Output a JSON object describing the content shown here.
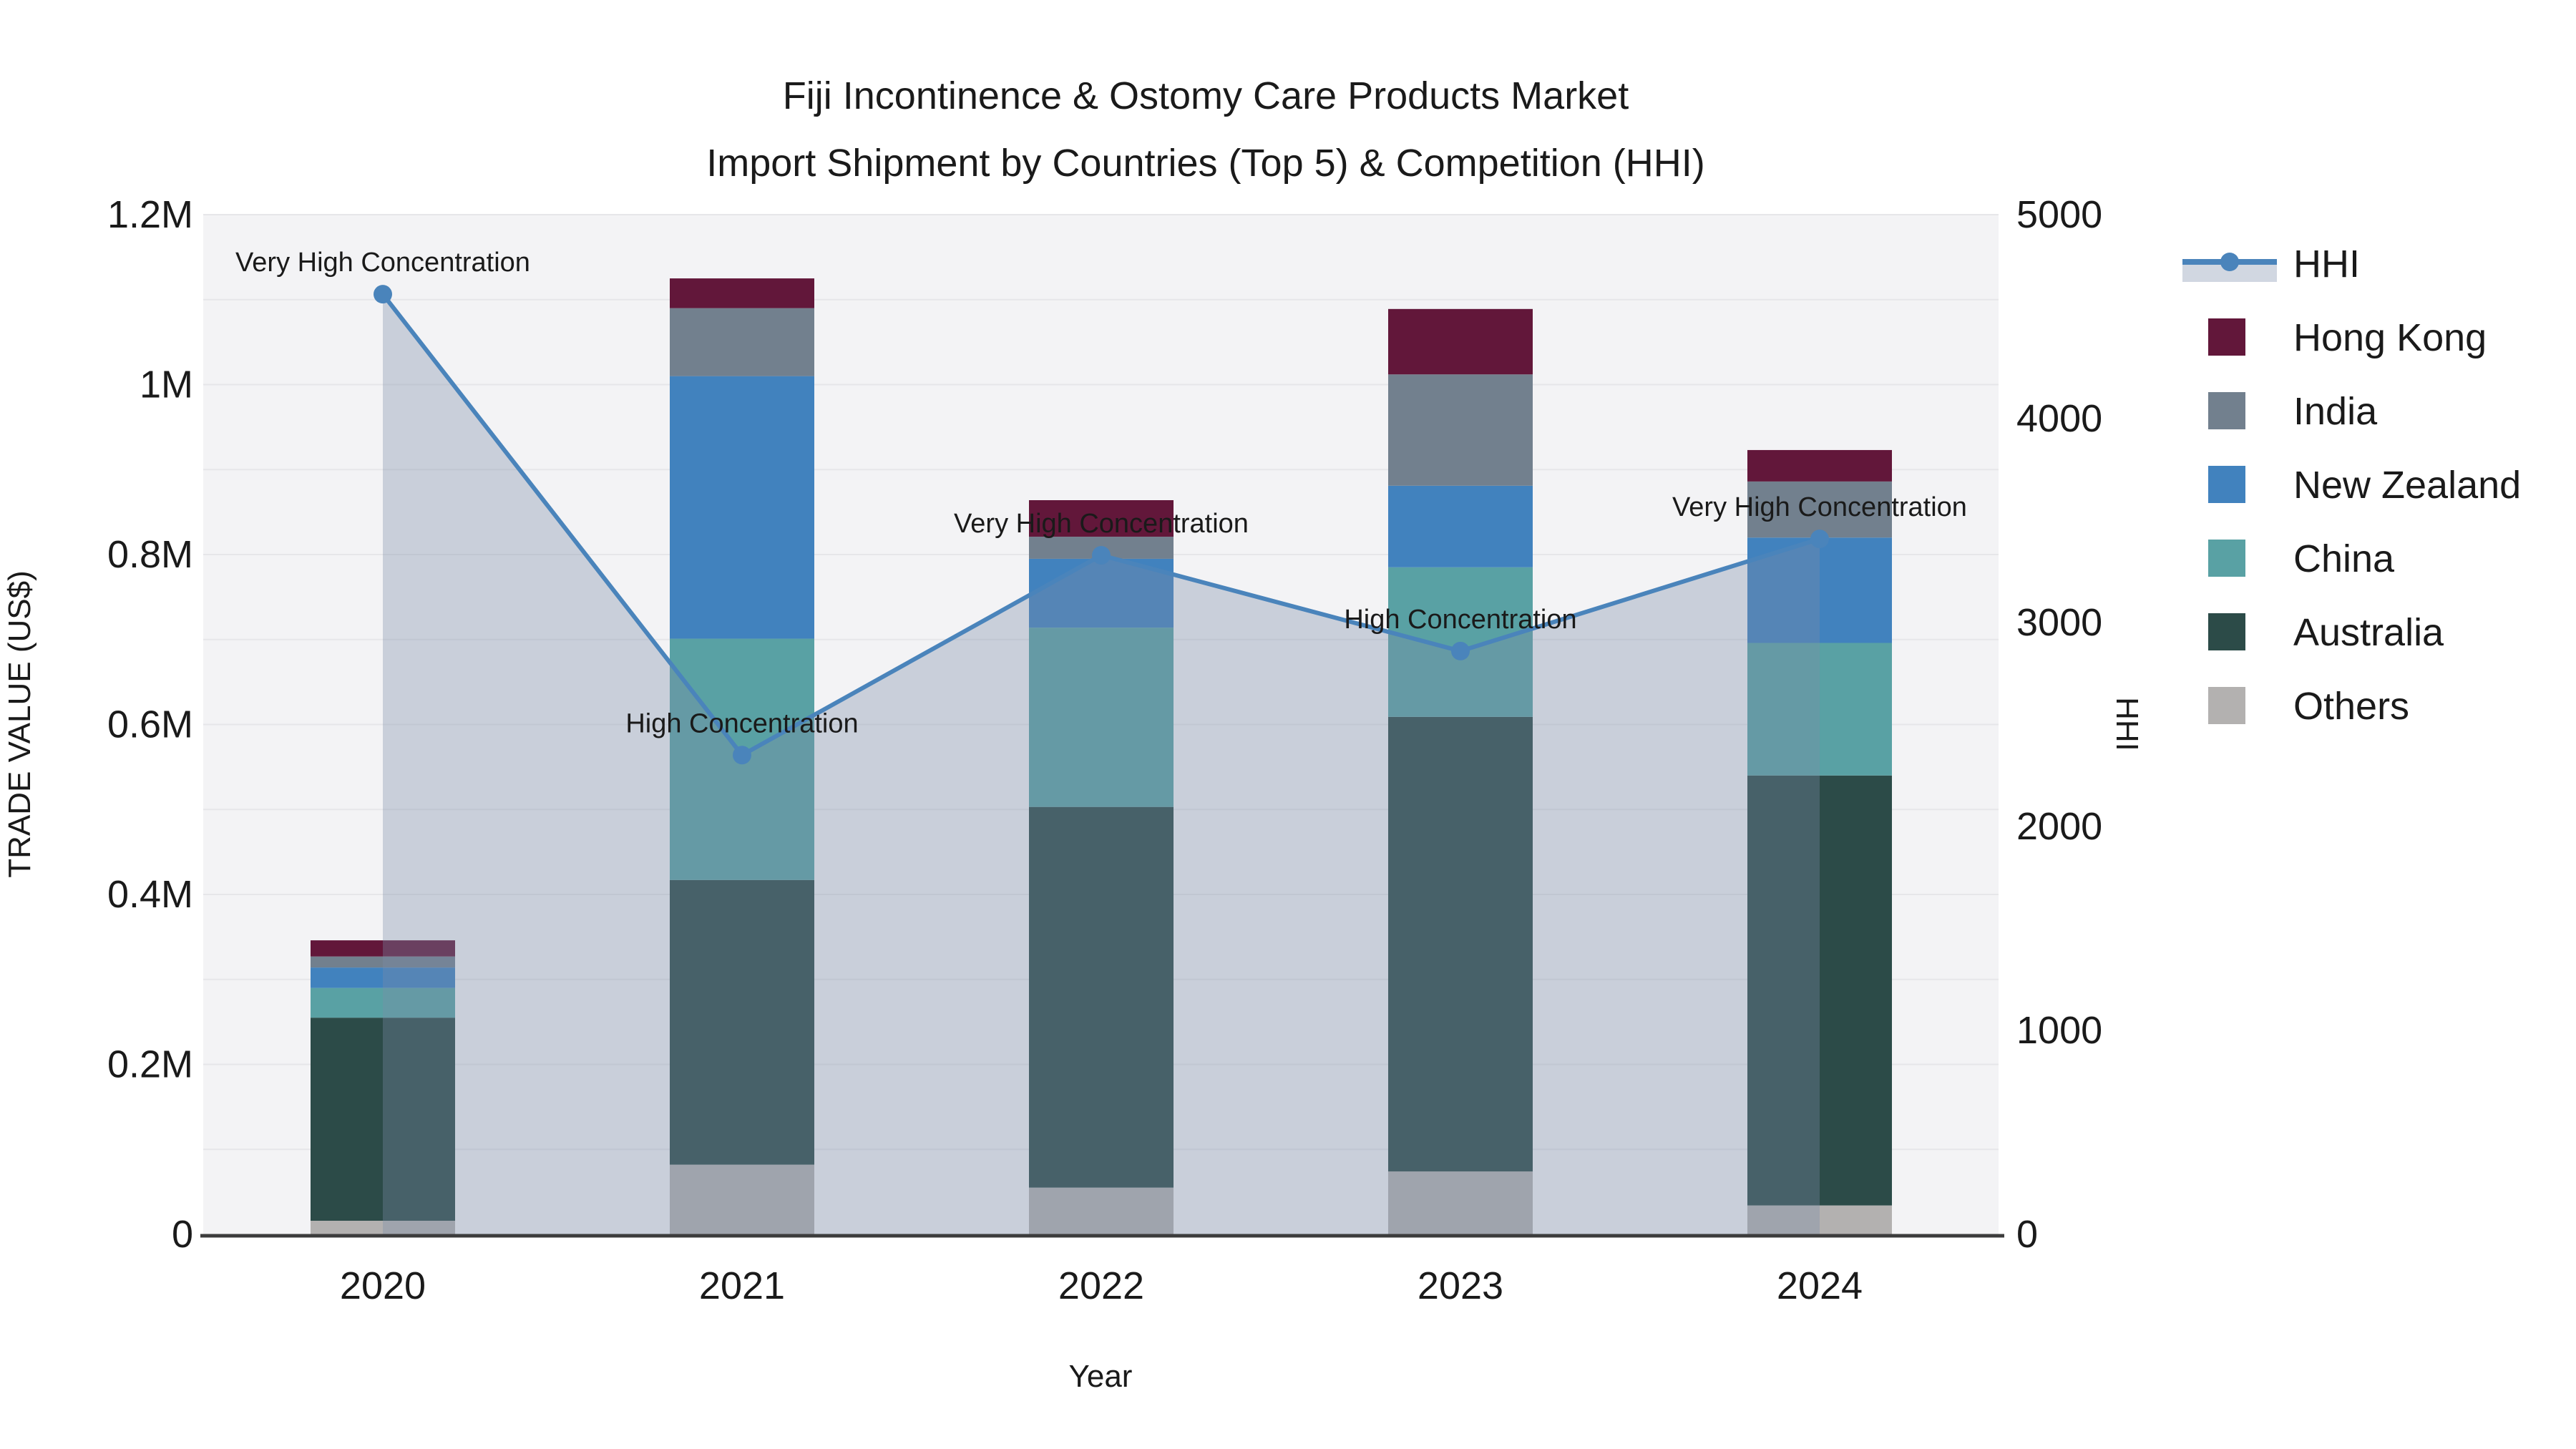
{
  "title_line1": "Fiji Incontinence & Ostomy Care Products Market",
  "title_line2": "Import Shipment by Countries (Top 5) & Competition (HHI)",
  "chart_data": {
    "type": "bar",
    "subtype": "stacked-bars-with-hhi-line-and-area",
    "title": "Fiji Incontinence & Ostomy Care Products Market Import Shipment by Countries (Top 5) & Competition (HHI)",
    "categories": [
      "2020",
      "2021",
      "2022",
      "2023",
      "2024"
    ],
    "unit": "US$ millions",
    "stack_order": "bottom-to-top",
    "series": [
      {
        "name": "Others",
        "color": "#b3b1b0",
        "values": [
          0.016,
          0.082,
          0.055,
          0.074,
          0.034
        ]
      },
      {
        "name": "Australia",
        "color": "#2c4b48",
        "values": [
          0.239,
          0.335,
          0.448,
          0.535,
          0.506
        ]
      },
      {
        "name": "China",
        "color": "#59a1a4",
        "values": [
          0.035,
          0.284,
          0.211,
          0.176,
          0.156
        ]
      },
      {
        "name": "New Zealand",
        "color": "#4182be",
        "values": [
          0.024,
          0.309,
          0.081,
          0.096,
          0.124
        ]
      },
      {
        "name": "India",
        "color": "#72808e",
        "values": [
          0.013,
          0.08,
          0.026,
          0.131,
          0.066
        ]
      },
      {
        "name": "Hong Kong",
        "color": "#62173a",
        "values": [
          0.019,
          0.035,
          0.043,
          0.077,
          0.037
        ]
      }
    ],
    "bar_totals": [
      0.346,
      1.125,
      0.864,
      1.089,
      0.923
    ],
    "line_series": {
      "name": "HHI",
      "color": "#4a84bb",
      "area_fill": "#7b8ca9",
      "area_opacity": 0.35,
      "values": [
        4610,
        2350,
        3330,
        2860,
        3410
      ]
    },
    "annotations": [
      "Very High Concentration",
      "High Concentration",
      "Very High Concentration",
      "High Concentration",
      "Very High Concentration"
    ],
    "x_axis": {
      "label": "Year",
      "ticks": [
        "2020",
        "2021",
        "2022",
        "2023",
        "2024"
      ]
    },
    "y_left": {
      "label": "TRADE VALUE (US$)",
      "ticks": [
        "0",
        "0.2M",
        "0.4M",
        "0.6M",
        "0.8M",
        "1M",
        "1.2M"
      ],
      "range": [
        0,
        1200000
      ]
    },
    "y_right": {
      "label": "HHI",
      "ticks": [
        "0",
        "1000",
        "2000",
        "3000",
        "4000",
        "5000"
      ],
      "range": [
        0,
        5000
      ]
    },
    "legend": [
      {
        "label": "HHI",
        "type": "line",
        "color": "#4a84bb"
      },
      {
        "label": "Hong Kong",
        "type": "square",
        "color": "#62173a"
      },
      {
        "label": "India",
        "type": "square",
        "color": "#72808e"
      },
      {
        "label": "New Zealand",
        "type": "square",
        "color": "#4182be"
      },
      {
        "label": "China",
        "type": "square",
        "color": "#59a1a4"
      },
      {
        "label": "Australia",
        "type": "square",
        "color": "#2c4b48"
      },
      {
        "label": "Others",
        "type": "square",
        "color": "#b3b1b0"
      }
    ],
    "colors": {
      "background": "#ffffff",
      "plot_background": "#f3f3f5",
      "gridline": "#e6e6e9",
      "axis_line": "#3c3c3c",
      "text": "#1a1a1a"
    },
    "layout_hints": {
      "grid": "horizontal only",
      "legend_position": "right, outside plot",
      "spines": "bottom only"
    }
  }
}
